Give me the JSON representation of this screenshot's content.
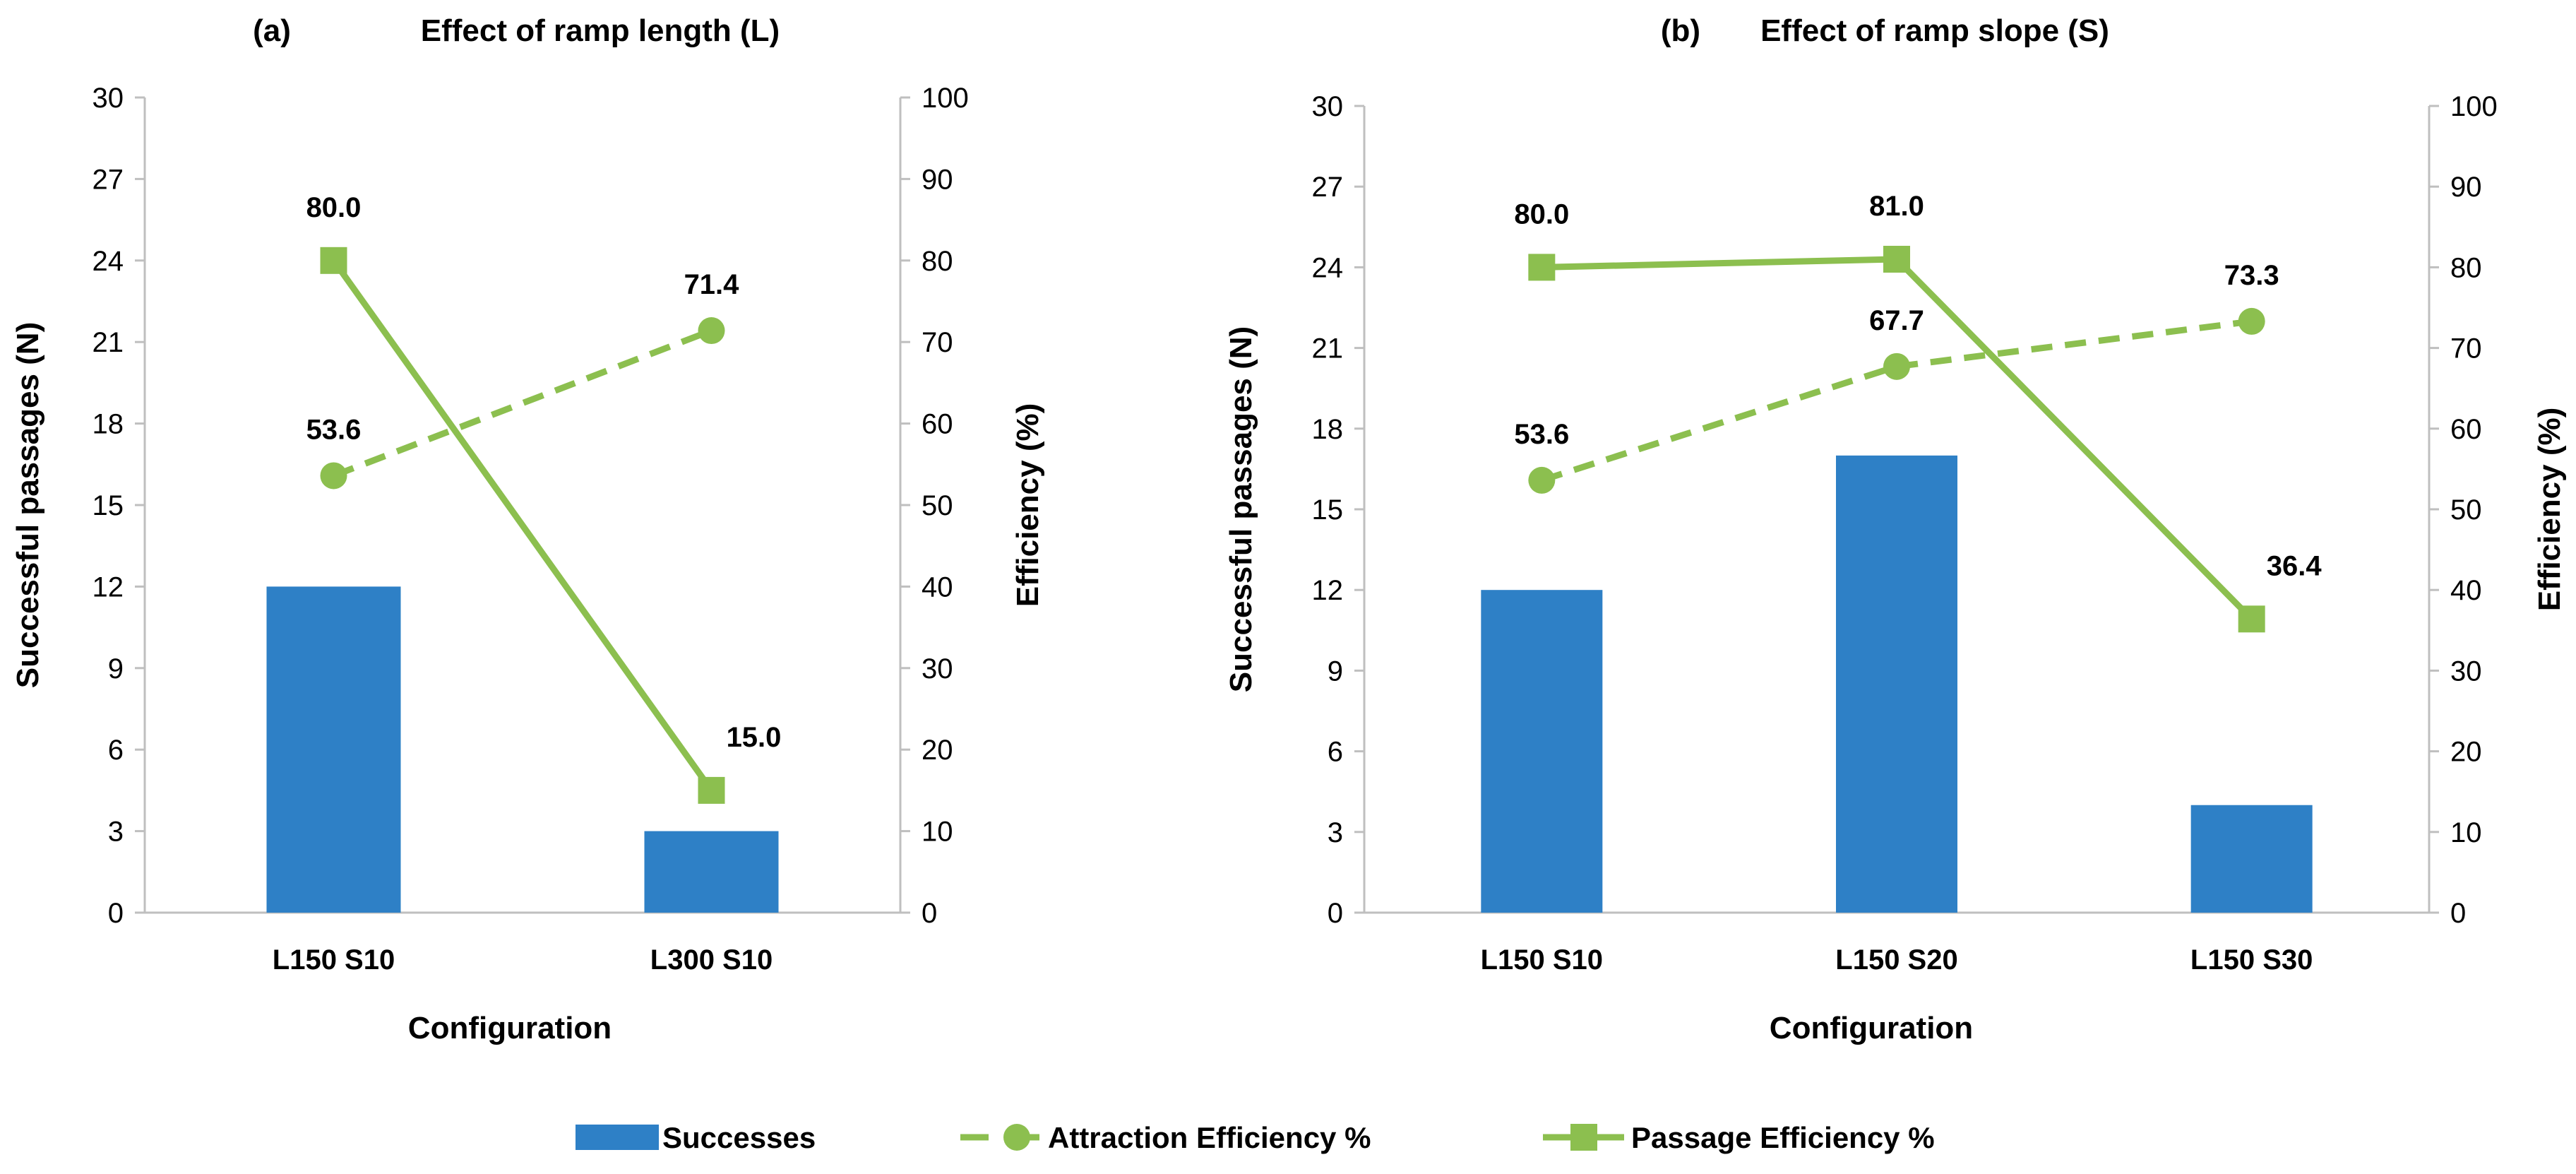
{
  "colors": {
    "bar": "#2e80c6",
    "line": "#8cbf4f",
    "axis": "#bfbfbf",
    "text": "#000000"
  },
  "legend": {
    "successes": "Successes",
    "attraction": "Attraction Efficiency %",
    "passage": "Passage Efficiency %"
  },
  "chart_data": [
    {
      "type": "bar",
      "panel": "(a)",
      "title": "Effect of ramp length (L)",
      "xlabel": "Configuration",
      "ylabel_left": "Successful passages   (N)",
      "ylabel_right": "Efficiency   (%)",
      "ylim_left": [
        0,
        30
      ],
      "yticks_left": [
        0,
        3,
        6,
        9,
        12,
        15,
        18,
        21,
        24,
        27,
        30
      ],
      "ylim_right": [
        0,
        100
      ],
      "yticks_right": [
        0,
        10,
        20,
        30,
        40,
        50,
        60,
        70,
        80,
        90,
        100
      ],
      "categories": [
        "L150 S10",
        "L300 S10"
      ],
      "series": [
        {
          "name": "Successes",
          "kind": "bar",
          "axis": "left",
          "values": [
            12,
            3
          ]
        },
        {
          "name": "Attraction Efficiency %",
          "kind": "line-dashed-circle",
          "axis": "right",
          "values": [
            53.6,
            71.4
          ],
          "labels": [
            "53.6",
            "71.4"
          ]
        },
        {
          "name": "Passage Efficiency %",
          "kind": "line-solid-square",
          "axis": "right",
          "values": [
            80.0,
            15.0
          ],
          "labels": [
            "80.0",
            "15.0"
          ]
        }
      ]
    },
    {
      "type": "bar",
      "panel": "(b)",
      "title": "Effect of ramp slope (S)",
      "xlabel": "Configuration",
      "ylabel_left": "Successful passages   (N)",
      "ylabel_right": "Efficiency   (%)",
      "ylim_left": [
        0,
        30
      ],
      "yticks_left": [
        0,
        3,
        6,
        9,
        12,
        15,
        18,
        21,
        24,
        27,
        30
      ],
      "ylim_right": [
        0,
        100
      ],
      "yticks_right": [
        0,
        10,
        20,
        30,
        40,
        50,
        60,
        70,
        80,
        90,
        100
      ],
      "categories": [
        "L150 S10",
        "L150 S20",
        "L150 S30"
      ],
      "series": [
        {
          "name": "Successes",
          "kind": "bar",
          "axis": "left",
          "values": [
            12,
            17,
            4
          ]
        },
        {
          "name": "Attraction Efficiency %",
          "kind": "line-dashed-circle",
          "axis": "right",
          "values": [
            53.6,
            67.7,
            73.3
          ],
          "labels": [
            "53.6",
            "67.7",
            "73.3"
          ]
        },
        {
          "name": "Passage Efficiency %",
          "kind": "line-solid-square",
          "axis": "right",
          "values": [
            80.0,
            81.0,
            36.4
          ],
          "labels": [
            "80.0",
            "81.0",
            "36.4"
          ]
        }
      ]
    }
  ]
}
